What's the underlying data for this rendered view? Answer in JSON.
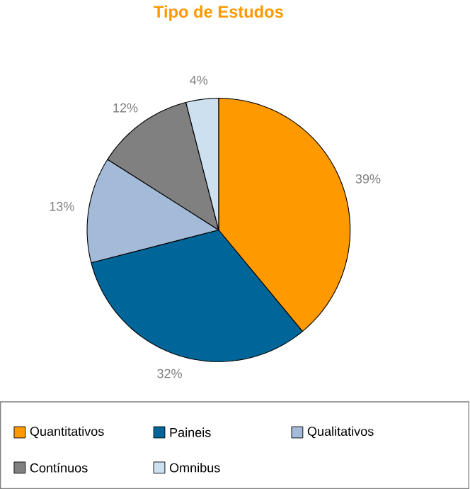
{
  "chart_data": {
    "type": "pie",
    "title": "Tipo de Estudos",
    "categories": [
      "Quantitativos",
      "Paineis",
      "Qualitativos",
      "Contínuos",
      "Omnibus"
    ],
    "values": [
      39,
      32,
      13,
      12,
      4
    ],
    "value_labels": [
      "39%",
      "32%",
      "13%",
      "12%",
      "4%"
    ],
    "colors": [
      "#ff9900",
      "#006699",
      "#a3bbd9",
      "#808080",
      "#cce0f0"
    ],
    "legend": "bottom"
  }
}
